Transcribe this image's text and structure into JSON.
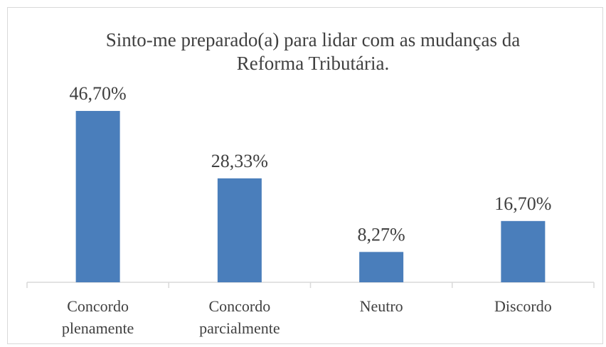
{
  "chart_data": {
    "type": "bar",
    "title": "Sinto-me preparado(a) para lidar com as mudanças da Reforma Tributária.",
    "categories": [
      "Concordo plenamente",
      "Concordo parcialmente",
      "Neutro",
      "Discordo"
    ],
    "values": [
      46.7,
      28.33,
      8.27,
      16.7
    ],
    "value_labels": [
      "46,70%",
      "28,33%",
      "8,27%",
      "16,70%"
    ],
    "color": "#4a7ebb",
    "ylim": [
      0,
      50
    ]
  }
}
